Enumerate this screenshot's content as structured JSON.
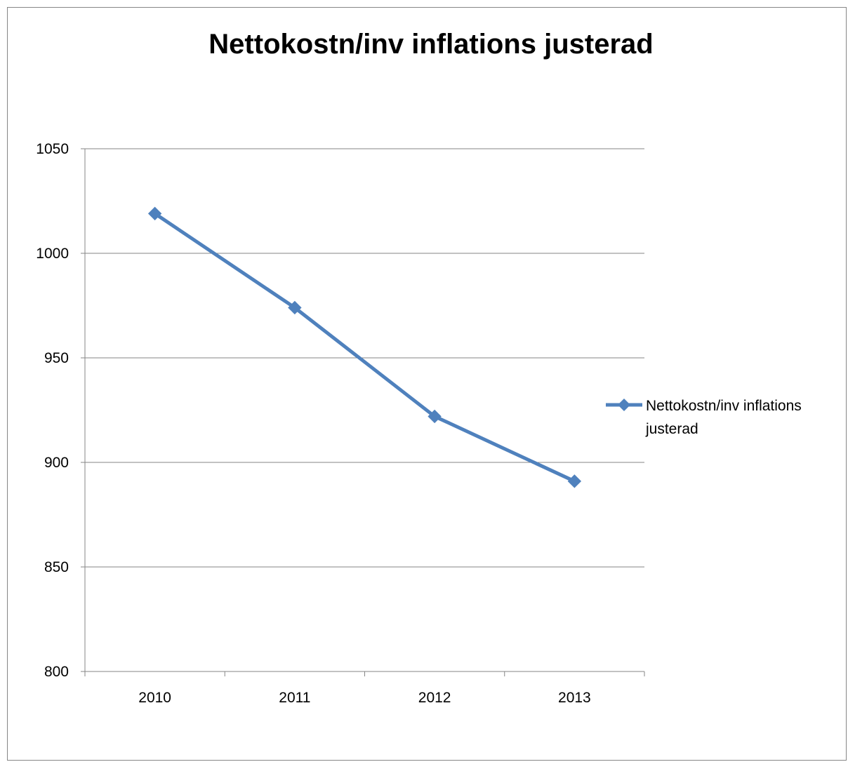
{
  "chart_data": {
    "type": "line",
    "title": "Nettokostn/inv inflations justerad",
    "xlabel": "",
    "ylabel": "",
    "categories": [
      "2010",
      "2011",
      "2012",
      "2013"
    ],
    "series": [
      {
        "name": "Nettokostn/inv inflations justerad",
        "legend_lines": [
          "Nettokostn/inv inflations",
          "justerad"
        ],
        "values": [
          1019,
          974,
          922,
          891
        ],
        "color": "#4F81BD",
        "marker": "diamond"
      }
    ],
    "ylim": [
      800,
      1050
    ],
    "yticks": [
      800,
      850,
      900,
      950,
      1000,
      1050
    ],
    "grid": true,
    "legend": "right"
  }
}
